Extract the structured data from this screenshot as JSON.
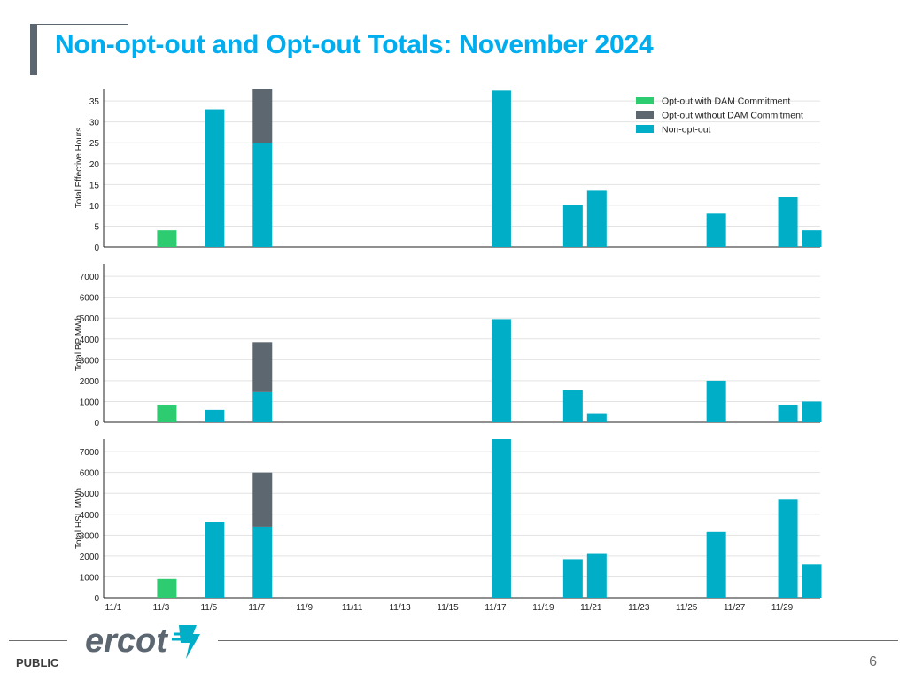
{
  "slide": {
    "title": "Non-opt-out and Opt-out Totals: November 2024",
    "footer_label": "PUBLIC",
    "page_number": "6",
    "logo_text": "ercot"
  },
  "colors": {
    "opt_out_dam": "#2ecc71",
    "opt_out_no_dam": "#5d6770",
    "non_opt_out": "#00aec7",
    "title": "#00aeef"
  },
  "chart_data": [
    {
      "type": "bar",
      "stacked": true,
      "ylabel": "Total Effective Hours",
      "ylim": [
        0,
        38
      ],
      "yticks": [
        0,
        5,
        10,
        15,
        20,
        25,
        30,
        35
      ],
      "categories": [
        "11/1",
        "11/2",
        "11/3",
        "11/4",
        "11/5",
        "11/6",
        "11/7",
        "11/8",
        "11/9",
        "11/10",
        "11/11",
        "11/12",
        "11/13",
        "11/14",
        "11/15",
        "11/16",
        "11/17",
        "11/18",
        "11/19",
        "11/20",
        "11/21",
        "11/22",
        "11/23",
        "11/24",
        "11/25",
        "11/26",
        "11/27",
        "11/28",
        "11/29",
        "11/30"
      ],
      "series": [
        {
          "name": "Opt-out with DAM Commitment",
          "values": [
            0,
            0,
            4,
            0,
            0,
            0,
            0,
            0,
            0,
            0,
            0,
            0,
            0,
            0,
            0,
            0,
            0,
            0,
            0,
            0,
            0,
            0,
            0,
            0,
            0,
            0,
            0,
            0,
            0,
            0
          ]
        },
        {
          "name": "Non-opt-out",
          "values": [
            0,
            0,
            0,
            0,
            33,
            0,
            25,
            0,
            0,
            0,
            0,
            0,
            0,
            0,
            0,
            0,
            37.5,
            0,
            0,
            10,
            13.5,
            0,
            0,
            0,
            0,
            8,
            0,
            0,
            12,
            4
          ]
        },
        {
          "name": "Opt-out without DAM Commitment",
          "values": [
            0,
            0,
            0,
            0,
            0,
            0,
            13,
            0,
            0,
            0,
            0,
            0,
            0,
            0,
            0,
            0,
            0,
            0,
            0,
            0,
            0,
            0,
            0,
            0,
            0,
            0,
            0,
            0,
            0,
            0
          ]
        }
      ],
      "legend": "top-right",
      "grid": true
    },
    {
      "type": "bar",
      "stacked": true,
      "ylabel": "Total BP MWh",
      "ylim": [
        0,
        7600
      ],
      "yticks": [
        0,
        1000,
        2000,
        3000,
        4000,
        5000,
        6000,
        7000
      ],
      "categories": [
        "11/1",
        "11/2",
        "11/3",
        "11/4",
        "11/5",
        "11/6",
        "11/7",
        "11/8",
        "11/9",
        "11/10",
        "11/11",
        "11/12",
        "11/13",
        "11/14",
        "11/15",
        "11/16",
        "11/17",
        "11/18",
        "11/19",
        "11/20",
        "11/21",
        "11/22",
        "11/23",
        "11/24",
        "11/25",
        "11/26",
        "11/27",
        "11/28",
        "11/29",
        "11/30"
      ],
      "series": [
        {
          "name": "Opt-out with DAM Commitment",
          "values": [
            0,
            0,
            850,
            0,
            0,
            0,
            0,
            0,
            0,
            0,
            0,
            0,
            0,
            0,
            0,
            0,
            0,
            0,
            0,
            0,
            0,
            0,
            0,
            0,
            0,
            0,
            0,
            0,
            0,
            0
          ]
        },
        {
          "name": "Non-opt-out",
          "values": [
            0,
            0,
            0,
            0,
            600,
            0,
            1450,
            0,
            0,
            0,
            0,
            0,
            0,
            0,
            0,
            0,
            4950,
            0,
            0,
            1550,
            400,
            0,
            0,
            0,
            0,
            2000,
            0,
            0,
            850,
            1000
          ]
        },
        {
          "name": "Opt-out without DAM Commitment",
          "values": [
            0,
            0,
            0,
            0,
            0,
            0,
            2400,
            0,
            0,
            0,
            0,
            0,
            0,
            0,
            0,
            0,
            0,
            0,
            0,
            0,
            0,
            0,
            0,
            0,
            0,
            0,
            0,
            0,
            0,
            0
          ]
        }
      ],
      "grid": true
    },
    {
      "type": "bar",
      "stacked": true,
      "ylabel": "Total HSL MWh",
      "ylim": [
        0,
        7600
      ],
      "yticks": [
        0,
        1000,
        2000,
        3000,
        4000,
        5000,
        6000,
        7000
      ],
      "categories": [
        "11/1",
        "11/2",
        "11/3",
        "11/4",
        "11/5",
        "11/6",
        "11/7",
        "11/8",
        "11/9",
        "11/10",
        "11/11",
        "11/12",
        "11/13",
        "11/14",
        "11/15",
        "11/16",
        "11/17",
        "11/18",
        "11/19",
        "11/20",
        "11/21",
        "11/22",
        "11/23",
        "11/24",
        "11/25",
        "11/26",
        "11/27",
        "11/28",
        "11/29",
        "11/30"
      ],
      "xtick_labels": [
        "11/1",
        "11/3",
        "11/5",
        "11/7",
        "11/9",
        "11/11",
        "11/13",
        "11/15",
        "11/17",
        "11/19",
        "11/21",
        "11/23",
        "11/25",
        "11/27",
        "11/29"
      ],
      "series": [
        {
          "name": "Opt-out with DAM Commitment",
          "values": [
            0,
            0,
            900,
            0,
            0,
            0,
            0,
            0,
            0,
            0,
            0,
            0,
            0,
            0,
            0,
            0,
            0,
            0,
            0,
            0,
            0,
            0,
            0,
            0,
            0,
            0,
            0,
            0,
            0,
            0
          ]
        },
        {
          "name": "Non-opt-out",
          "values": [
            0,
            0,
            0,
            0,
            3650,
            0,
            3400,
            0,
            0,
            0,
            0,
            0,
            0,
            0,
            0,
            0,
            7600,
            0,
            0,
            1850,
            2100,
            0,
            0,
            0,
            0,
            3150,
            0,
            0,
            4700,
            1600
          ]
        },
        {
          "name": "Opt-out without DAM Commitment",
          "values": [
            0,
            0,
            0,
            0,
            0,
            0,
            2600,
            0,
            0,
            0,
            0,
            0,
            0,
            0,
            0,
            0,
            0,
            0,
            0,
            0,
            0,
            0,
            0,
            0,
            0,
            0,
            0,
            0,
            0,
            0
          ]
        }
      ],
      "grid": true
    }
  ],
  "legend": {
    "items": [
      {
        "label": "Opt-out with DAM Commitment",
        "color": "#2ecc71"
      },
      {
        "label": "Opt-out without DAM Commitment",
        "color": "#5d6770"
      },
      {
        "label": "Non-opt-out",
        "color": "#00aec7"
      }
    ]
  }
}
